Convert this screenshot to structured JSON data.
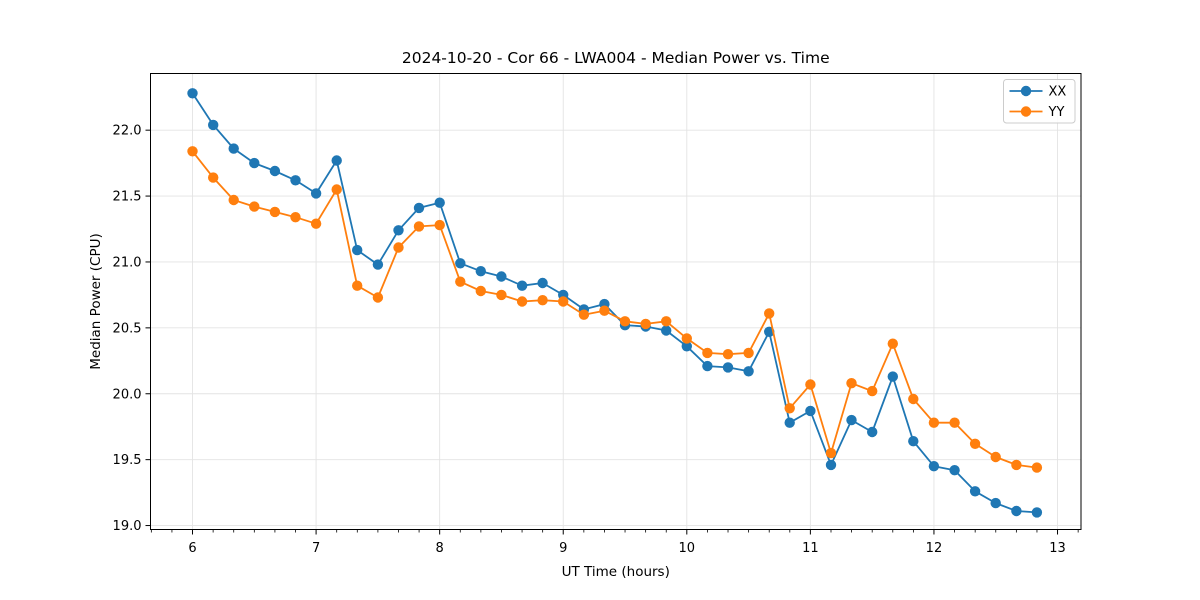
{
  "chart_data": {
    "type": "line",
    "title": "2024-10-20 - Cor 66 - LWA004 - Median Power vs. Time",
    "xlabel": "UT Time (hours)",
    "ylabel": "Median Power (CPU)",
    "xlim": [
      5.66,
      13.19
    ],
    "ylim": [
      18.97,
      22.43
    ],
    "xticks": [
      6,
      7,
      8,
      9,
      10,
      11,
      12,
      13
    ],
    "xtick_labels": [
      "6",
      "7",
      "8",
      "9",
      "10",
      "11",
      "12",
      "13"
    ],
    "yticks": [
      19.0,
      19.5,
      20.0,
      20.5,
      21.0,
      21.5,
      22.0
    ],
    "ytick_labels": [
      "19.0",
      "19.5",
      "20.0",
      "20.5",
      "21.0",
      "21.5",
      "22.0"
    ],
    "minor_xtick_step": 0.16667,
    "grid": true,
    "grid_color": "#e3e3e3",
    "legend": {
      "position": "upper right",
      "entries": [
        "XX",
        "YY"
      ]
    },
    "x": [
      6.0,
      6.167,
      6.333,
      6.5,
      6.667,
      6.833,
      7.0,
      7.167,
      7.333,
      7.5,
      7.667,
      7.833,
      8.0,
      8.167,
      8.333,
      8.5,
      8.667,
      8.833,
      9.0,
      9.167,
      9.333,
      9.5,
      9.667,
      9.833,
      10.0,
      10.167,
      10.333,
      10.5,
      10.667,
      10.833,
      11.0,
      11.167,
      11.333,
      11.5,
      11.667,
      11.833,
      12.0,
      12.167,
      12.333,
      12.5,
      12.667,
      12.833
    ],
    "series": [
      {
        "name": "XX",
        "color": "#1f77b4",
        "marker": "o",
        "values": [
          22.28,
          22.04,
          21.86,
          21.75,
          21.69,
          21.62,
          21.52,
          21.77,
          21.09,
          20.98,
          21.24,
          21.41,
          21.45,
          20.99,
          20.93,
          20.89,
          20.82,
          20.84,
          20.75,
          20.64,
          20.68,
          20.52,
          20.51,
          20.48,
          20.36,
          20.21,
          20.2,
          20.17,
          20.47,
          19.78,
          19.87,
          19.46,
          19.8,
          19.71,
          20.13,
          19.64,
          19.45,
          19.42,
          19.26,
          19.17,
          19.11,
          19.1
        ]
      },
      {
        "name": "YY",
        "color": "#ff7f0e",
        "marker": "o",
        "values": [
          21.84,
          21.64,
          21.47,
          21.42,
          21.38,
          21.34,
          21.29,
          21.55,
          20.82,
          20.73,
          21.11,
          21.27,
          21.28,
          20.85,
          20.78,
          20.75,
          20.7,
          20.71,
          20.7,
          20.6,
          20.63,
          20.55,
          20.53,
          20.55,
          20.42,
          20.31,
          20.3,
          20.31,
          20.61,
          19.89,
          20.07,
          19.55,
          20.08,
          20.02,
          20.38,
          19.96,
          19.78,
          19.78,
          19.62,
          19.52,
          19.46,
          19.44
        ]
      }
    ]
  }
}
